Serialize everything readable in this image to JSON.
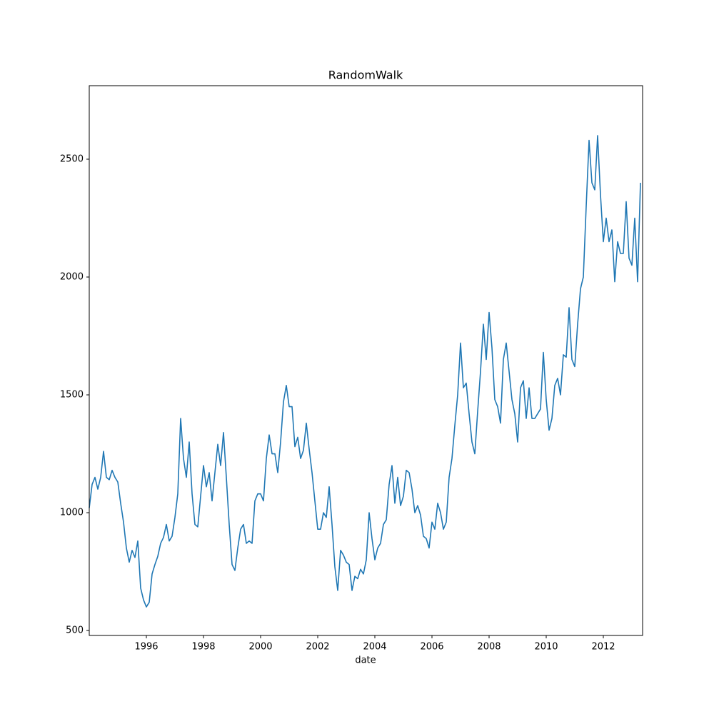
{
  "chart_data": {
    "type": "line",
    "title": "RandomWalk",
    "x_label": "date",
    "color": "#1f77b4",
    "xlim": [
      1994,
      2013.375
    ],
    "xticks": [
      1996,
      1998,
      2000,
      2002,
      2004,
      2006,
      2008,
      2010,
      2012
    ],
    "ylim": [
      479,
      2812
    ],
    "yticks": [
      500,
      1000,
      1500,
      2000,
      2500
    ],
    "x": [
      1994,
      1994.1,
      1994.2,
      1994.3,
      1994.4,
      1994.5,
      1994.6,
      1994.7,
      1994.8,
      1994.9,
      1995,
      1995.1,
      1995.2,
      1995.3,
      1995.4,
      1995.5,
      1995.6,
      1995.7,
      1995.8,
      1995.9,
      1996,
      1996.1,
      1996.2,
      1996.3,
      1996.4,
      1996.5,
      1996.6,
      1996.7,
      1996.8,
      1996.9,
      1997,
      1997.1,
      1997.2,
      1997.3,
      1997.4,
      1997.5,
      1997.6,
      1997.7,
      1997.8,
      1997.9,
      1998,
      1998.1,
      1998.2,
      1998.3,
      1998.4,
      1998.5,
      1998.6,
      1998.7,
      1998.8,
      1998.9,
      1999,
      1999.1,
      1999.2,
      1999.3,
      1999.4,
      1999.5,
      1999.6,
      1999.7,
      1999.8,
      1999.9,
      2000,
      2000.1,
      2000.2,
      2000.3,
      2000.4,
      2000.5,
      2000.6,
      2000.7,
      2000.8,
      2000.9,
      2001,
      2001.1,
      2001.2,
      2001.3,
      2001.4,
      2001.5,
      2001.6,
      2001.7,
      2001.8,
      2001.9,
      2002,
      2002.1,
      2002.2,
      2002.3,
      2002.4,
      2002.5,
      2002.6,
      2002.7,
      2002.8,
      2002.9,
      2003,
      2003.1,
      2003.2,
      2003.3,
      2003.4,
      2003.5,
      2003.6,
      2003.7,
      2003.8,
      2003.9,
      2004,
      2004.1,
      2004.2,
      2004.3,
      2004.4,
      2004.5,
      2004.6,
      2004.7,
      2004.8,
      2004.9,
      2005,
      2005.1,
      2005.2,
      2005.3,
      2005.4,
      2005.5,
      2005.6,
      2005.7,
      2005.8,
      2005.9,
      2006,
      2006.1,
      2006.2,
      2006.3,
      2006.4,
      2006.5,
      2006.6,
      2006.7,
      2006.8,
      2006.9,
      2007,
      2007.1,
      2007.2,
      2007.3,
      2007.4,
      2007.5,
      2007.6,
      2007.7,
      2007.8,
      2007.9,
      2008,
      2008.1,
      2008.2,
      2008.3,
      2008.4,
      2008.5,
      2008.6,
      2008.7,
      2008.8,
      2008.9,
      2009,
      2009.1,
      2009.2,
      2009.3,
      2009.4,
      2009.5,
      2009.6,
      2009.7,
      2009.8,
      2009.9,
      2010,
      2010.1,
      2010.2,
      2010.3,
      2010.4,
      2010.5,
      2010.6,
      2010.7,
      2010.8,
      2010.9,
      2011,
      2011.1,
      2011.2,
      2011.3,
      2011.4,
      2011.5,
      2011.6,
      2011.7,
      2011.8,
      2011.9,
      2012,
      2012.1,
      2012.2,
      2012.3,
      2012.4,
      2012.5,
      2012.6,
      2012.7,
      2012.8,
      2012.9,
      2013,
      2013.1,
      2013.2,
      2013.3
    ],
    "values": [
      1020,
      1120,
      1150,
      1100,
      1150,
      1260,
      1150,
      1140,
      1180,
      1150,
      1130,
      1040,
      960,
      850,
      790,
      840,
      810,
      880,
      680,
      630,
      600,
      620,
      740,
      780,
      815,
      870,
      895,
      950,
      880,
      900,
      980,
      1080,
      1400,
      1230,
      1150,
      1300,
      1080,
      950,
      940,
      1070,
      1200,
      1110,
      1170,
      1050,
      1170,
      1290,
      1200,
      1340,
      1150,
      950,
      780,
      755,
      850,
      930,
      950,
      870,
      880,
      870,
      1050,
      1080,
      1080,
      1050,
      1230,
      1330,
      1250,
      1250,
      1170,
      1300,
      1470,
      1540,
      1450,
      1450,
      1280,
      1320,
      1230,
      1265,
      1380,
      1270,
      1170,
      1050,
      930,
      930,
      1000,
      980,
      1110,
      950,
      770,
      670,
      840,
      820,
      790,
      780,
      670,
      730,
      720,
      760,
      740,
      800,
      1000,
      890,
      800,
      850,
      870,
      950,
      970,
      1120,
      1200,
      1040,
      1150,
      1030,
      1070,
      1180,
      1170,
      1100,
      1000,
      1030,
      990,
      900,
      890,
      850,
      960,
      930,
      1040,
      1000,
      930,
      960,
      1150,
      1230,
      1370,
      1500,
      1720,
      1530,
      1550,
      1420,
      1300,
      1250,
      1430,
      1600,
      1800,
      1650,
      1850,
      1700,
      1480,
      1450,
      1380,
      1650,
      1720,
      1600,
      1480,
      1420,
      1300,
      1530,
      1560,
      1400,
      1530,
      1400,
      1400,
      1420,
      1440,
      1680,
      1480,
      1350,
      1400,
      1540,
      1570,
      1500,
      1670,
      1660,
      1870,
      1650,
      1620,
      1800,
      1950,
      2000,
      2300,
      2580,
      2400,
      2370,
      2600,
      2350,
      2150,
      2250,
      2150,
      2200,
      1980,
      2150,
      2100,
      2100,
      2320,
      2080,
      2050,
      2250,
      1980,
      2400
    ]
  }
}
